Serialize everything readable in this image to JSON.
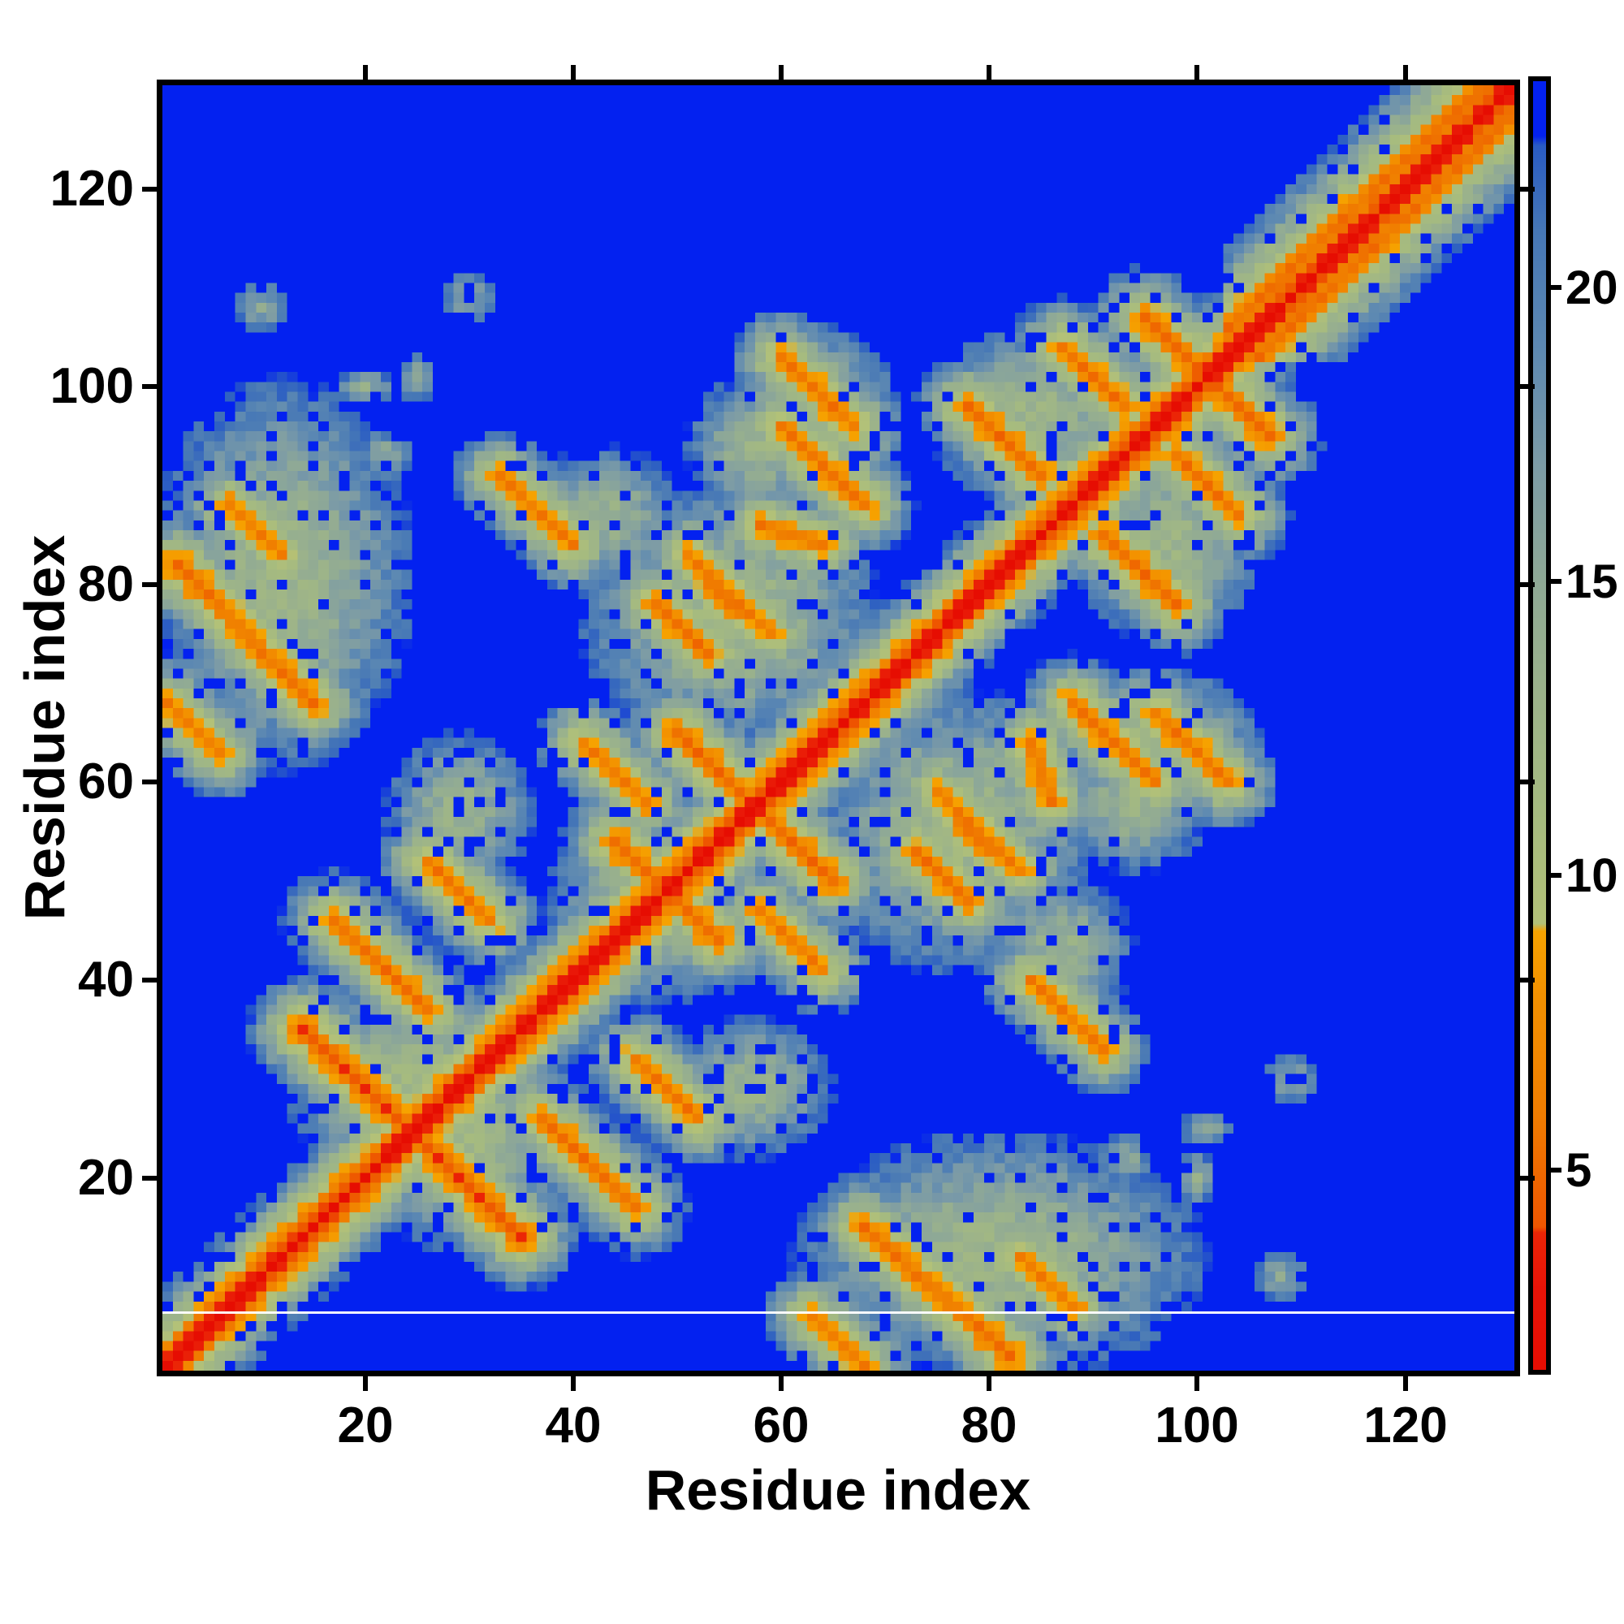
{
  "chart_data": {
    "type": "heatmap",
    "title": "",
    "xlabel": "Residue index",
    "ylabel": "Residue index",
    "n_residues": 130,
    "x_ticks": [
      20,
      40,
      60,
      80,
      100,
      120
    ],
    "y_ticks": [
      20,
      40,
      60,
      80,
      100,
      120
    ],
    "axis_range": [
      1,
      130
    ],
    "grid": false,
    "colorbar": {
      "position": "right",
      "ticks": [
        5,
        10,
        15,
        20
      ],
      "vmin": 1.6,
      "vmax": 23.5
    },
    "background_color": "#0321F0",
    "colormap_stops": [
      [
        1.6,
        "#E60D02"
      ],
      [
        3.0,
        "#E81408"
      ],
      [
        3.92,
        "#EB2506"
      ],
      [
        4.02,
        "#EE5600"
      ],
      [
        6.0,
        "#F07E00"
      ],
      [
        8.0,
        "#F39200"
      ],
      [
        9.05,
        "#F6A300"
      ],
      [
        9.18,
        "#B3C178"
      ],
      [
        11.0,
        "#A6BB7F"
      ],
      [
        13.0,
        "#9CB38A"
      ],
      [
        15.0,
        "#8FA996"
      ],
      [
        17.0,
        "#7C9BA6"
      ],
      [
        19.0,
        "#5D89B2"
      ],
      [
        21.0,
        "#4677B6"
      ],
      [
        22.42,
        "#2A5CC4"
      ],
      [
        22.58,
        "#0321F0"
      ],
      [
        24.5,
        "#0321F0"
      ]
    ],
    "artifact_white_row": 6,
    "synthesis": {
      "chain": {
        "d1": 3.8,
        "slope": 2.6
      },
      "helix_range": [
        103,
        130
      ],
      "helix_profile": {
        "k1": 3.9,
        "k2": 5.8,
        "k3": 5.4,
        "k4": 7.3,
        "slope": 1.75,
        "offset": 1.6
      },
      "streak_slope": 3.4,
      "streaks": [
        {
          "seg": [
            14,
            35,
            24,
            25
          ],
          "d0": 4.0
        },
        {
          "seg": [
            17,
            46,
            26,
            37
          ],
          "d0": 5.2
        },
        {
          "seg": [
            2,
            82,
            15,
            68
          ],
          "d0": 5.0
        },
        {
          "seg": [
            7,
            88,
            12,
            83
          ],
          "d0": 6.0
        },
        {
          "seg": [
            1,
            68,
            6,
            63
          ],
          "d0": 5.8
        },
        {
          "seg": [
            26,
            52,
            32,
            46
          ],
          "d0": 5.6
        },
        {
          "seg": [
            44,
            54,
            50,
            48
          ],
          "d0": 5.0
        },
        {
          "seg": [
            50,
            65,
            62,
            53
          ],
          "d0": 4.8
        },
        {
          "seg": [
            48,
            78,
            53,
            73
          ],
          "d0": 5.2
        },
        {
          "seg": [
            58,
            86,
            64,
            84
          ],
          "d0": 5.6
        },
        {
          "seg": [
            53,
            80,
            56,
            77
          ],
          "d0": 5.6
        },
        {
          "seg": [
            60,
            103,
            67,
            96
          ],
          "d0": 5.6
        },
        {
          "seg": [
            78,
            98,
            85,
            91
          ],
          "d0": 5.0
        },
        {
          "seg": [
            87,
            104,
            93,
            98
          ],
          "d0": 5.4
        },
        {
          "seg": [
            95,
            107,
            106,
            96
          ],
          "d0": 4.8
        },
        {
          "seg": [
            60,
            96,
            68,
            88
          ],
          "d0": 5.5
        },
        {
          "seg": [
            51,
            83,
            59,
            75
          ],
          "d0": 6.0
        },
        {
          "seg": [
            33,
            91,
            40,
            84
          ],
          "d0": 6.0
        },
        {
          "seg": [
            41,
            64,
            47,
            58
          ],
          "d0": 6.0
        }
      ],
      "clouds": [
        {
          "c": [
            12,
            81
          ],
          "r": [
            14,
            22
          ],
          "d0": 12.5
        },
        {
          "c": [
            24,
            30
          ],
          "r": [
            13,
            12
          ],
          "d0": 12.0
        },
        {
          "c": [
            55,
            77
          ],
          "r": [
            16,
            15
          ],
          "d0": 12.0
        },
        {
          "c": [
            47,
            47
          ],
          "r": [
            11,
            11
          ],
          "d0": 12.5
        },
        {
          "c": [
            63,
            99
          ],
          "r": [
            9,
            8
          ],
          "d0": 13.0
        },
        {
          "c": [
            84,
            97
          ],
          "r": [
            11,
            10
          ],
          "d0": 12.5
        },
        {
          "c": [
            58,
            94
          ],
          "r": [
            8,
            8
          ],
          "d0": 13.0
        },
        {
          "c": [
            29,
            57
          ],
          "r": [
            8,
            9
          ],
          "d0": 13.5
        },
        {
          "c": [
            43,
            87
          ],
          "r": [
            8,
            8
          ],
          "d0": 13.5
        },
        {
          "c": [
            10,
            108
          ],
          "r": [
            3,
            3
          ],
          "d0": 15.5
        },
        {
          "c": [
            30,
            109
          ],
          "r": [
            3,
            3
          ],
          "d0": 15.5
        },
        {
          "c": [
            20,
            100
          ],
          "r": [
            3,
            2
          ],
          "d0": 14.5
        },
        {
          "c": [
            22,
            93
          ],
          "r": [
            3,
            3
          ],
          "d0": 15.0
        },
        {
          "c": [
            25,
            101
          ],
          "r": [
            2,
            3
          ],
          "d0": 15.5
        }
      ],
      "noise": {
        "amp_far": 3.2,
        "amp_near": 1.3,
        "near_threshold": 9.2,
        "apply_below": 22.4,
        "hole_chance": 0.1,
        "hole_min_d": 10.5,
        "hole_value": 24.2
      },
      "clamp": [
        1.6,
        24.4
      ]
    }
  }
}
